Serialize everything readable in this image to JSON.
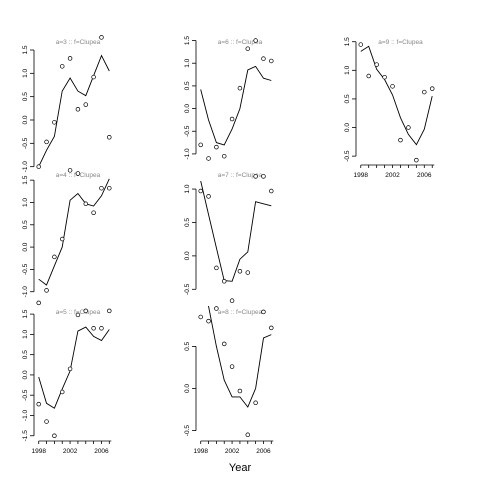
{
  "chart_data": {
    "type": "line",
    "xlabel": "Year",
    "x": [
      1998,
      1999,
      2000,
      2001,
      2002,
      2003,
      2004,
      2005,
      2006,
      2007
    ],
    "panels": [
      {
        "label": "a=3 :: f=Clupea",
        "yticks": [
          -1.0,
          -0.5,
          0.0,
          0.5,
          1.0,
          1.5
        ],
        "ylim": [
          -1.05,
          1.8
        ],
        "line": [
          -1.0,
          -0.65,
          -0.35,
          0.62,
          0.9,
          0.62,
          0.52,
          0.95,
          1.38,
          1.05
        ],
        "points": [
          -1.0,
          -0.47,
          -0.05,
          1.15,
          1.32,
          0.23,
          0.33,
          0.92,
          1.77,
          -0.37
        ]
      },
      {
        "label": "a=6 :: f=Clupea",
        "yticks": [
          -1.0,
          -0.5,
          0.0,
          0.5,
          1.0,
          1.5
        ],
        "ylim": [
          -1.2,
          1.6
        ],
        "line": [
          0.42,
          -0.25,
          -0.75,
          -0.8,
          -0.45,
          0.0,
          0.85,
          0.93,
          0.67,
          0.62
        ],
        "points": [
          -0.8,
          -1.1,
          -0.85,
          -1.05,
          -0.23,
          0.45,
          1.32,
          1.5,
          1.1,
          1.05
        ]
      },
      {
        "label": "a=9 :: f=Clupea",
        "yticks": [
          -0.5,
          0.0,
          0.5,
          1.0,
          1.5
        ],
        "ylim": [
          -0.62,
          1.6
        ],
        "line": [
          1.33,
          1.42,
          1.02,
          0.84,
          0.57,
          0.17,
          -0.12,
          -0.3,
          -0.03,
          0.55
        ],
        "points": [
          1.45,
          0.9,
          1.1,
          0.88,
          0.72,
          -0.22,
          0.0,
          -0.57,
          0.62,
          0.68
        ]
      },
      {
        "label": "a=4 :: f=Clupea",
        "yticks": [
          -1.0,
          -0.5,
          0.0,
          0.5,
          1.0,
          1.5
        ],
        "ylim": [
          -1.32,
          1.75
        ],
        "line": [
          -0.72,
          -0.85,
          -0.42,
          0.0,
          1.05,
          1.2,
          0.97,
          0.92,
          1.15,
          1.53
        ],
        "points": [
          -1.25,
          -0.97,
          -0.22,
          0.18,
          1.72,
          1.65,
          0.97,
          0.77,
          1.32,
          1.32
        ]
      },
      {
        "label": "a=7 :: f=Clupea",
        "yticks": [
          -0.5,
          0.0,
          0.5,
          1.0
        ],
        "ylim": [
          -0.75,
          1.3
        ],
        "line": [
          1.12,
          0.62,
          0.12,
          -0.37,
          -0.38,
          -0.05,
          0.06,
          0.81,
          0.78,
          0.75
        ],
        "points": [
          0.97,
          0.89,
          -0.18,
          -0.38,
          -0.67,
          -0.23,
          -0.25,
          1.19,
          1.19,
          0.97
        ]
      },
      {
        "label": "a=5 :: f=Clupea",
        "yticks": [
          -1.5,
          -1.0,
          -0.5,
          0.0,
          0.5,
          1.0,
          1.5
        ],
        "ylim": [
          -1.58,
          1.7
        ],
        "line": [
          -0.05,
          -0.7,
          -0.82,
          -0.35,
          0.1,
          1.08,
          1.18,
          0.95,
          0.85,
          1.12
        ],
        "points": [
          -0.72,
          -1.15,
          -1.5,
          -0.42,
          0.15,
          1.48,
          1.58,
          1.15,
          1.15,
          1.58
        ]
      },
      {
        "label": "a=8 :: f=Clupea",
        "yticks": [
          -0.5,
          0.0,
          0.5
        ],
        "ylim": [
          -0.6,
          0.98
        ],
        "line": [
          1.12,
          0.98,
          0.5,
          0.1,
          -0.1,
          -0.1,
          -0.22,
          0.0,
          0.6,
          0.64
        ],
        "points": [
          0.85,
          0.8,
          0.95,
          0.53,
          0.26,
          -0.03,
          -0.55,
          -0.17,
          0.91,
          0.72
        ]
      }
    ]
  },
  "xticks": [
    "1998",
    "2002",
    "2006"
  ]
}
